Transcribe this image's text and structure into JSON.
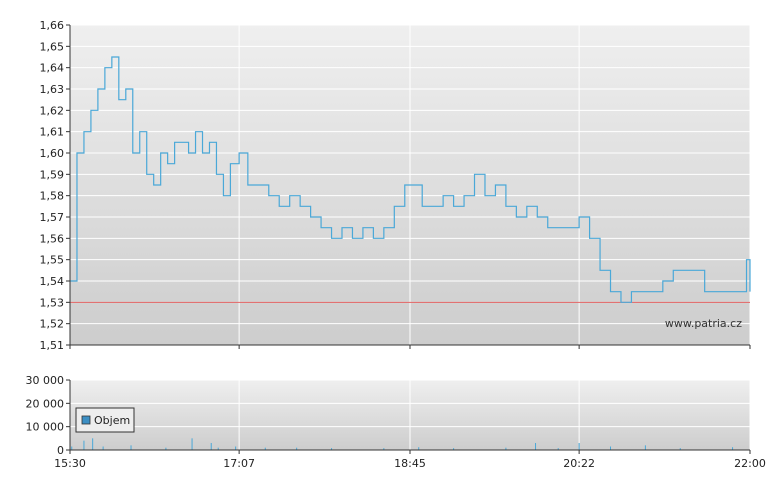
{
  "colors": {
    "price_line": "#4aa8d8",
    "reference_line": "#e06060",
    "grid": "#ffffff",
    "legend_swatch": "#3c8fc4"
  },
  "watermark": "www.patria.cz",
  "chart_data": [
    {
      "type": "line",
      "name": "price",
      "ylim": [
        1.51,
        1.66
      ],
      "yticks": [
        "1,51",
        "1,52",
        "1,53",
        "1,54",
        "1,55",
        "1,56",
        "1,57",
        "1,58",
        "1,59",
        "1,60",
        "1,61",
        "1,62",
        "1,63",
        "1,64",
        "1,65",
        "1,66"
      ],
      "xticks": [
        "15:30",
        "17:07",
        "18:45",
        "20:22",
        "22:00"
      ],
      "x_range": [
        "15:30",
        "22:00"
      ],
      "grid": true,
      "reference_line": 1.53,
      "x": [
        "15:30",
        "15:34",
        "15:38",
        "15:42",
        "15:46",
        "15:50",
        "15:54",
        "15:58",
        "16:02",
        "16:06",
        "16:10",
        "16:14",
        "16:18",
        "16:22",
        "16:26",
        "16:30",
        "16:34",
        "16:38",
        "16:42",
        "16:46",
        "16:50",
        "16:54",
        "16:58",
        "17:02",
        "17:07",
        "17:12",
        "17:18",
        "17:24",
        "17:30",
        "17:36",
        "17:42",
        "17:48",
        "17:54",
        "18:00",
        "18:06",
        "18:12",
        "18:18",
        "18:24",
        "18:30",
        "18:36",
        "18:42",
        "18:45",
        "18:52",
        "18:58",
        "19:04",
        "19:10",
        "19:16",
        "19:22",
        "19:28",
        "19:34",
        "19:40",
        "19:46",
        "19:52",
        "19:58",
        "20:04",
        "20:10",
        "20:16",
        "20:22",
        "20:28",
        "20:34",
        "20:40",
        "20:46",
        "20:52",
        "20:58",
        "21:04",
        "21:10",
        "21:16",
        "21:22",
        "21:28",
        "21:34",
        "21:40",
        "21:46",
        "21:52",
        "21:58",
        "22:00"
      ],
      "values": [
        1.54,
        1.6,
        1.61,
        1.62,
        1.63,
        1.64,
        1.645,
        1.625,
        1.63,
        1.6,
        1.61,
        1.59,
        1.585,
        1.6,
        1.595,
        1.605,
        1.605,
        1.6,
        1.61,
        1.6,
        1.605,
        1.59,
        1.58,
        1.595,
        1.6,
        1.585,
        1.585,
        1.58,
        1.575,
        1.58,
        1.575,
        1.57,
        1.565,
        1.56,
        1.565,
        1.56,
        1.565,
        1.56,
        1.565,
        1.575,
        1.585,
        1.585,
        1.575,
        1.575,
        1.58,
        1.575,
        1.58,
        1.59,
        1.58,
        1.585,
        1.575,
        1.57,
        1.575,
        1.57,
        1.565,
        1.565,
        1.565,
        1.57,
        1.56,
        1.545,
        1.535,
        1.53,
        1.535,
        1.535,
        1.535,
        1.54,
        1.545,
        1.545,
        1.545,
        1.535,
        1.535,
        1.535,
        1.535,
        1.55,
        1.535
      ]
    },
    {
      "type": "bar",
      "name": "volume",
      "legend": [
        "Objem"
      ],
      "ylim": [
        0,
        30000
      ],
      "yticks": [
        "0",
        "10 000",
        "20 000",
        "30 000"
      ],
      "xticks": [
        "15:30",
        "17:07",
        "18:45",
        "20:22",
        "22:00"
      ],
      "grid": true,
      "x": [
        "15:31",
        "15:38",
        "15:43",
        "15:49",
        "16:05",
        "16:25",
        "16:40",
        "16:51",
        "16:55",
        "17:05",
        "17:22",
        "17:40",
        "18:00",
        "18:30",
        "18:50",
        "19:10",
        "19:40",
        "19:57",
        "20:10",
        "20:22",
        "20:40",
        "21:00",
        "21:20",
        "21:50"
      ],
      "values": [
        1500,
        4000,
        5000,
        1500,
        2000,
        1000,
        5000,
        3000,
        1000,
        1500,
        1000,
        1000,
        800,
        800,
        1200,
        800,
        1000,
        3000,
        800,
        3000,
        1500,
        2000,
        800,
        1200
      ]
    }
  ]
}
